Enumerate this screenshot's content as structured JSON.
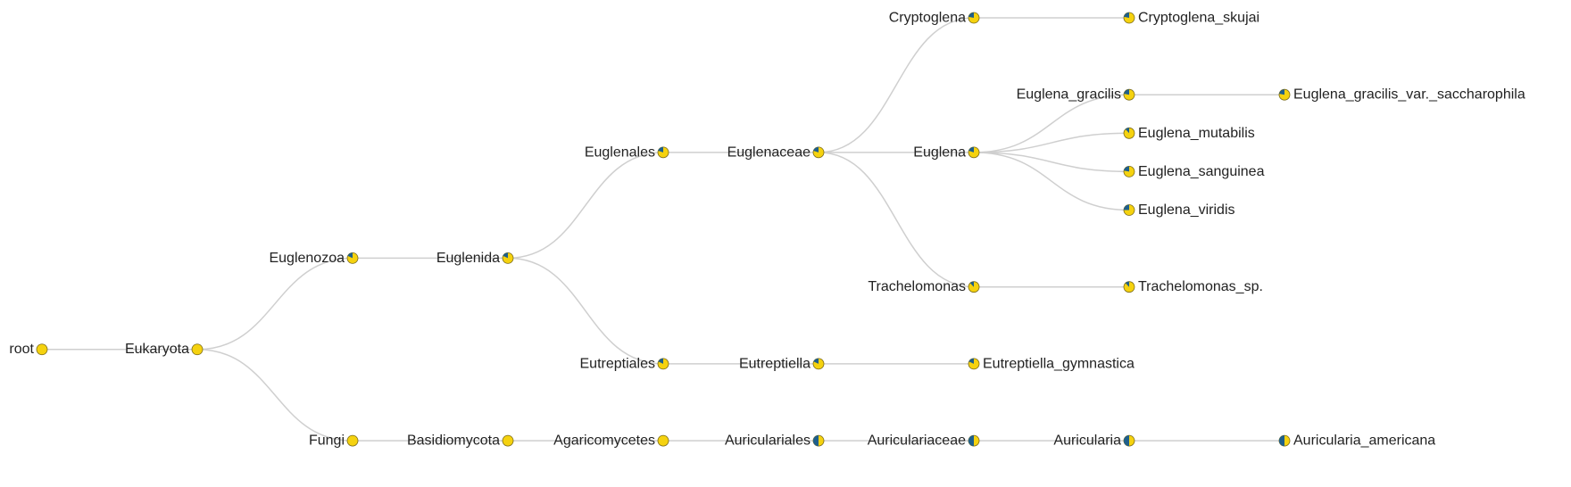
{
  "colors": {
    "yellow": "#f5d20f",
    "blue": "#1f5f8b",
    "link": "#cfcfcf"
  },
  "tree": {
    "name": "root",
    "blue": 0,
    "children": [
      {
        "name": "Eukaryota",
        "blue": 0,
        "children": [
          {
            "name": "Euglenozoa",
            "blue": 0.18,
            "children": [
              {
                "name": "Euglenida",
                "blue": 0.18,
                "children": [
                  {
                    "name": "Euglenales",
                    "blue": 0.2,
                    "children": [
                      {
                        "name": "Euglenaceae",
                        "blue": 0.2,
                        "children": [
                          {
                            "name": "Cryptoglena",
                            "blue": 0.22,
                            "children": [
                              {
                                "name": "Cryptoglena_skujai",
                                "blue": 0.22
                              }
                            ]
                          },
                          {
                            "name": "Euglena",
                            "blue": 0.2,
                            "children": [
                              {
                                "name": "Euglena_gracilis",
                                "blue": 0.22,
                                "children": [
                                  {
                                    "name": "Euglena_gracilis_var._saccharophila",
                                    "blue": 0.22
                                  }
                                ]
                              },
                              {
                                "name": "Euglena_mutabilis",
                                "blue": 0.12
                              },
                              {
                                "name": "Euglena_sanguinea",
                                "blue": 0.22
                              },
                              {
                                "name": "Euglena_viridis",
                                "blue": 0.25
                              }
                            ]
                          },
                          {
                            "name": "Trachelomonas",
                            "blue": 0.12,
                            "children": [
                              {
                                "name": "Trachelomonas_sp.",
                                "blue": 0.12
                              }
                            ]
                          }
                        ]
                      }
                    ]
                  },
                  {
                    "name": "Eutreptiales",
                    "blue": 0.18,
                    "children": [
                      {
                        "name": "Eutreptiella",
                        "blue": 0.18,
                        "children": [
                          {
                            "name": "Eutreptiella_gymnastica",
                            "blue": 0.18
                          }
                        ]
                      }
                    ]
                  }
                ]
              }
            ]
          },
          {
            "name": "Fungi",
            "blue": 0,
            "children": [
              {
                "name": "Basidiomycota",
                "blue": 0,
                "children": [
                  {
                    "name": "Agaricomycetes",
                    "blue": 0,
                    "children": [
                      {
                        "name": "Auriculariales",
                        "blue": 0.5,
                        "children": [
                          {
                            "name": "Auriculariaceae",
                            "blue": 0.5,
                            "children": [
                              {
                                "name": "Auricularia",
                                "blue": 0.5,
                                "children": [
                                  {
                                    "name": "Auricularia_americana",
                                    "blue": 0.5
                                  }
                                ]
                              }
                            ]
                          }
                        ]
                      }
                    ]
                  }
                ]
              }
            ]
          }
        ]
      }
    ]
  }
}
